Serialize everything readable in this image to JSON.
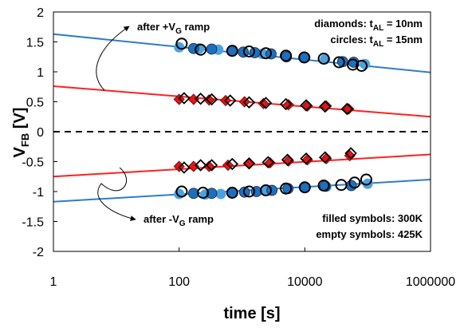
{
  "chart_data": {
    "type": "scatter",
    "title": "",
    "xlabel": "time [s]",
    "ylabel": {
      "main": "V",
      "sub": "FB",
      "unit": " [V]"
    },
    "x_scale": "log",
    "xlim": [
      1,
      1000000
    ],
    "ylim": [
      -2,
      2
    ],
    "x_ticks": [
      1,
      100,
      10000,
      1000000
    ],
    "x_tick_labels": [
      "1",
      "100",
      "10000",
      "1000000"
    ],
    "y_ticks": [
      -2,
      -1.5,
      -1,
      -0.5,
      0,
      0.5,
      1,
      1.5,
      2
    ],
    "y_tick_labels": [
      "-2",
      "-1.5",
      "-1",
      "-0.5",
      "0",
      "0.5",
      "1",
      "1.5",
      "2"
    ],
    "zero_line": "dashed",
    "colors": {
      "blue": "#2e7dc4",
      "red": "#ff2020",
      "marker_blue": "#1d6fc0",
      "marker_blue_light": "#4aa3e0",
      "marker_red": "#e01515"
    },
    "fit_lines": [
      {
        "color": "blue",
        "x": [
          1,
          1000000
        ],
        "y": [
          1.63,
          0.99
        ]
      },
      {
        "color": "red",
        "x": [
          1,
          1000000
        ],
        "y": [
          0.76,
          0.25
        ]
      },
      {
        "color": "red",
        "x": [
          1,
          1000000
        ],
        "y": [
          -0.75,
          -0.38
        ]
      },
      {
        "color": "blue",
        "x": [
          1,
          1000000
        ],
        "y": [
          -1.17,
          -0.8
        ]
      }
    ],
    "series": [
      {
        "marker": "circle",
        "fill": "light",
        "color": "blue",
        "x": [
          100,
          210,
          420,
          2100,
          21000,
          90000
        ],
        "y": [
          1.41,
          1.39,
          1.37,
          1.3,
          1.21,
          1.13
        ]
      },
      {
        "marker": "circle",
        "fill": "filled",
        "color": "blue",
        "x": [
          170,
          330,
          700,
          1050,
          1600,
          2900,
          5100,
          10000,
          40000,
          60000
        ],
        "y": [
          1.39,
          1.38,
          1.36,
          1.33,
          1.32,
          1.3,
          1.25,
          1.24,
          1.17,
          1.16
        ]
      },
      {
        "marker": "circle",
        "fill": "empty",
        "color": "black",
        "x": [
          110,
          220,
          700,
          1300,
          2400,
          5000,
          9800,
          20000,
          35000,
          58000,
          80000
        ],
        "y": [
          1.47,
          1.37,
          1.35,
          1.34,
          1.31,
          1.27,
          1.24,
          1.22,
          1.16,
          1.12,
          1.1
        ]
      },
      {
        "marker": "diamond",
        "fill": "filled",
        "color": "red",
        "x": [
          100,
          170,
          300,
          550,
          1100,
          2200,
          5500,
          11000,
          22000,
          50000
        ],
        "y": [
          0.54,
          0.54,
          0.53,
          0.52,
          0.5,
          0.47,
          0.45,
          0.43,
          0.43,
          0.38
        ]
      },
      {
        "marker": "diamond",
        "fill": "empty",
        "color": "black",
        "x": [
          120,
          220,
          330,
          650,
          1300,
          2400,
          5000,
          10500,
          21000,
          47000
        ],
        "y": [
          0.56,
          0.55,
          0.54,
          0.52,
          0.49,
          0.48,
          0.46,
          0.44,
          0.42,
          0.38
        ]
      },
      {
        "marker": "diamond",
        "fill": "filled",
        "color": "red",
        "x": [
          100,
          170,
          300,
          600,
          1300,
          2800,
          5500,
          11000,
          22000,
          52000
        ],
        "y": [
          -0.58,
          -0.58,
          -0.58,
          -0.56,
          -0.53,
          -0.52,
          -0.49,
          -0.47,
          -0.45,
          -0.4
        ]
      },
      {
        "marker": "diamond",
        "fill": "empty",
        "color": "black",
        "x": [
          120,
          220,
          330,
          700,
          1300,
          2600,
          5300,
          10500,
          21000,
          54000
        ],
        "y": [
          -0.6,
          -0.56,
          -0.56,
          -0.54,
          -0.53,
          -0.51,
          -0.47,
          -0.45,
          -0.43,
          -0.36
        ]
      },
      {
        "marker": "circle",
        "fill": "light",
        "color": "blue",
        "x": [
          100,
          260,
          460,
          2400,
          22000,
          100000
        ],
        "y": [
          -1.04,
          -1.05,
          -1.04,
          -0.97,
          -0.92,
          -0.87
        ]
      },
      {
        "marker": "circle",
        "fill": "filled",
        "color": "blue",
        "x": [
          170,
          330,
          700,
          1100,
          1700,
          3000,
          5400,
          10000,
          21000,
          55000
        ],
        "y": [
          -1.03,
          -1.03,
          -1.02,
          -1.01,
          -1.0,
          -0.98,
          -0.95,
          -0.93,
          -0.91,
          -0.9
        ]
      },
      {
        "marker": "circle",
        "fill": "empty",
        "color": "black",
        "x": [
          110,
          240,
          700,
          1300,
          2400,
          5000,
          10000,
          20000,
          38000,
          62000,
          95000
        ],
        "y": [
          -1.0,
          -1.02,
          -1.02,
          -1.0,
          -0.98,
          -0.95,
          -0.93,
          -0.9,
          -0.89,
          -0.85,
          -0.8
        ]
      }
    ],
    "annotations": {
      "after_pos_ramp": {
        "pre": "after +V",
        "sub": "G",
        "post": " ramp"
      },
      "after_neg_ramp": {
        "pre": "after -V",
        "sub": "G",
        "post": " ramp"
      },
      "diamonds": {
        "pre": "diamonds: t",
        "sub": "AL",
        "post": " = 10nm"
      },
      "circles": {
        "pre": "circles: t",
        "sub": "AL",
        "post": " = 15nm"
      },
      "filled": "filled symbols: 300K",
      "empty": "empty symbols: 425K"
    }
  }
}
